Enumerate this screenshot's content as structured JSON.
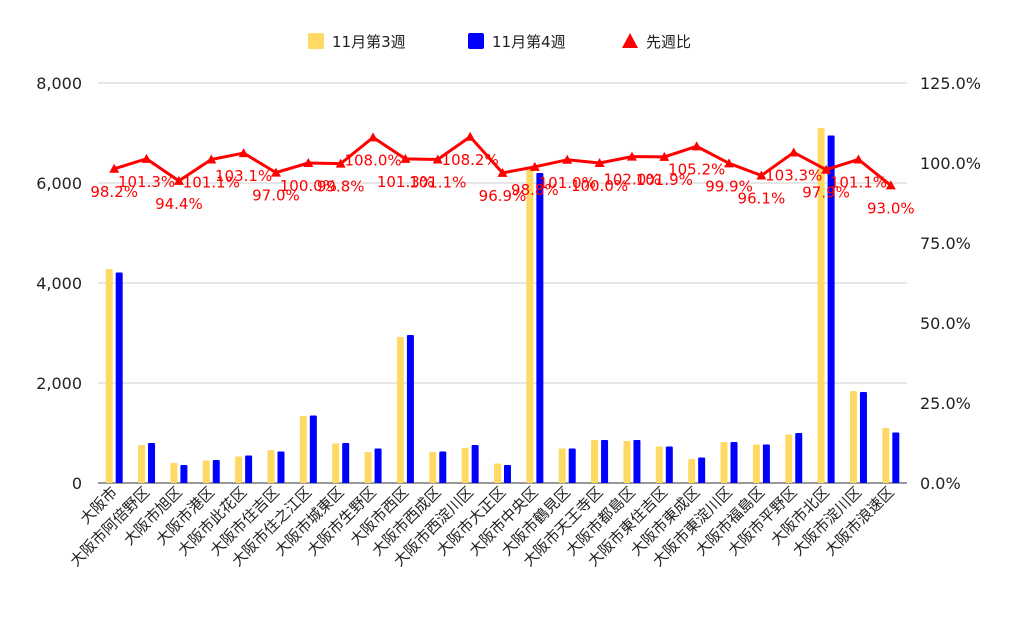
{
  "chart_data": {
    "type": "bar",
    "title": "",
    "categories": [
      "大阪市",
      "大阪市阿倍野区",
      "大阪市旭区",
      "大阪市港区",
      "大阪市此花区",
      "大阪市住吉区",
      "大阪市住之江区",
      "大阪市城東区",
      "大阪市生野区",
      "大阪市西区",
      "大阪市西成区",
      "大阪市西淀川区",
      "大阪市大正区",
      "大阪市中央区",
      "大阪市鶴見区",
      "大阪市天王寺区",
      "大阪市都島区",
      "大阪市東住吉区",
      "大阪市東成区",
      "大阪市東淀川区",
      "大阪市福島区",
      "大阪市平野区",
      "大阪市北区",
      "大阪市淀川区",
      "大阪市浪速区"
    ],
    "series": [
      {
        "name": "11月第3週",
        "type": "bar",
        "axis": "left",
        "color": "#FFD966",
        "values": [
          4280,
          760,
          400,
          450,
          530,
          660,
          1340,
          790,
          620,
          2920,
          620,
          700,
          390,
          6300,
          690,
          860,
          840,
          730,
          480,
          820,
          770,
          970,
          7100,
          1840,
          1100
        ]
      },
      {
        "name": "11月第4週",
        "type": "bar",
        "axis": "left",
        "color": "#0000FF",
        "values": [
          4210,
          800,
          360,
          460,
          550,
          630,
          1350,
          800,
          690,
          2960,
          630,
          760,
          360,
          6200,
          690,
          860,
          860,
          730,
          510,
          820,
          770,
          1000,
          6950,
          1820,
          1010
        ]
      },
      {
        "name": "先週比",
        "type": "line",
        "axis": "right",
        "color": "#FF0000",
        "marker": "triangle",
        "values": [
          98.2,
          101.3,
          94.4,
          101.1,
          103.1,
          97.0,
          100.0,
          99.8,
          108.0,
          101.3,
          101.1,
          108.2,
          96.9,
          98.8,
          101.0,
          100.0,
          102.0,
          101.9,
          105.2,
          99.9,
          96.1,
          103.3,
          97.9,
          101.1,
          93.0
        ]
      }
    ],
    "data_labels": [
      "98.2%",
      "101.3%",
      "94.4%",
      "101.1%",
      "103.1%",
      "97.0%",
      "100.0%",
      "99.8%",
      "108.0%",
      "101.3%",
      "101.1%",
      "108.2%",
      "96.9%",
      "98.8%",
      "101.0%",
      "100.0%",
      "102.0%",
      "101.9%",
      "105.2%",
      "99.9%",
      "96.1%",
      "103.3%",
      "97.9%",
      "101.1%",
      "93.0%"
    ],
    "y_left": {
      "min": 0,
      "max": 8000,
      "ticks": [
        "0",
        "2,000",
        "4,000",
        "6,000",
        "8,000"
      ],
      "tick_values": [
        0,
        2000,
        4000,
        6000,
        8000
      ]
    },
    "y_right": {
      "min": 0,
      "max": 125,
      "ticks": [
        "0.0%",
        "25.0%",
        "50.0%",
        "75.0%",
        "100.0%",
        "125.0%"
      ],
      "tick_values": [
        0,
        25,
        50,
        75,
        100,
        125
      ]
    },
    "legend": {
      "position": "top",
      "entries": [
        {
          "label": "11月第3週",
          "color": "#FFD966",
          "shape": "square"
        },
        {
          "label": "11月第4週",
          "color": "#0000FF",
          "shape": "square"
        },
        {
          "label": "先週比",
          "color": "#FF0000",
          "shape": "triangle"
        }
      ]
    },
    "grid": true
  }
}
